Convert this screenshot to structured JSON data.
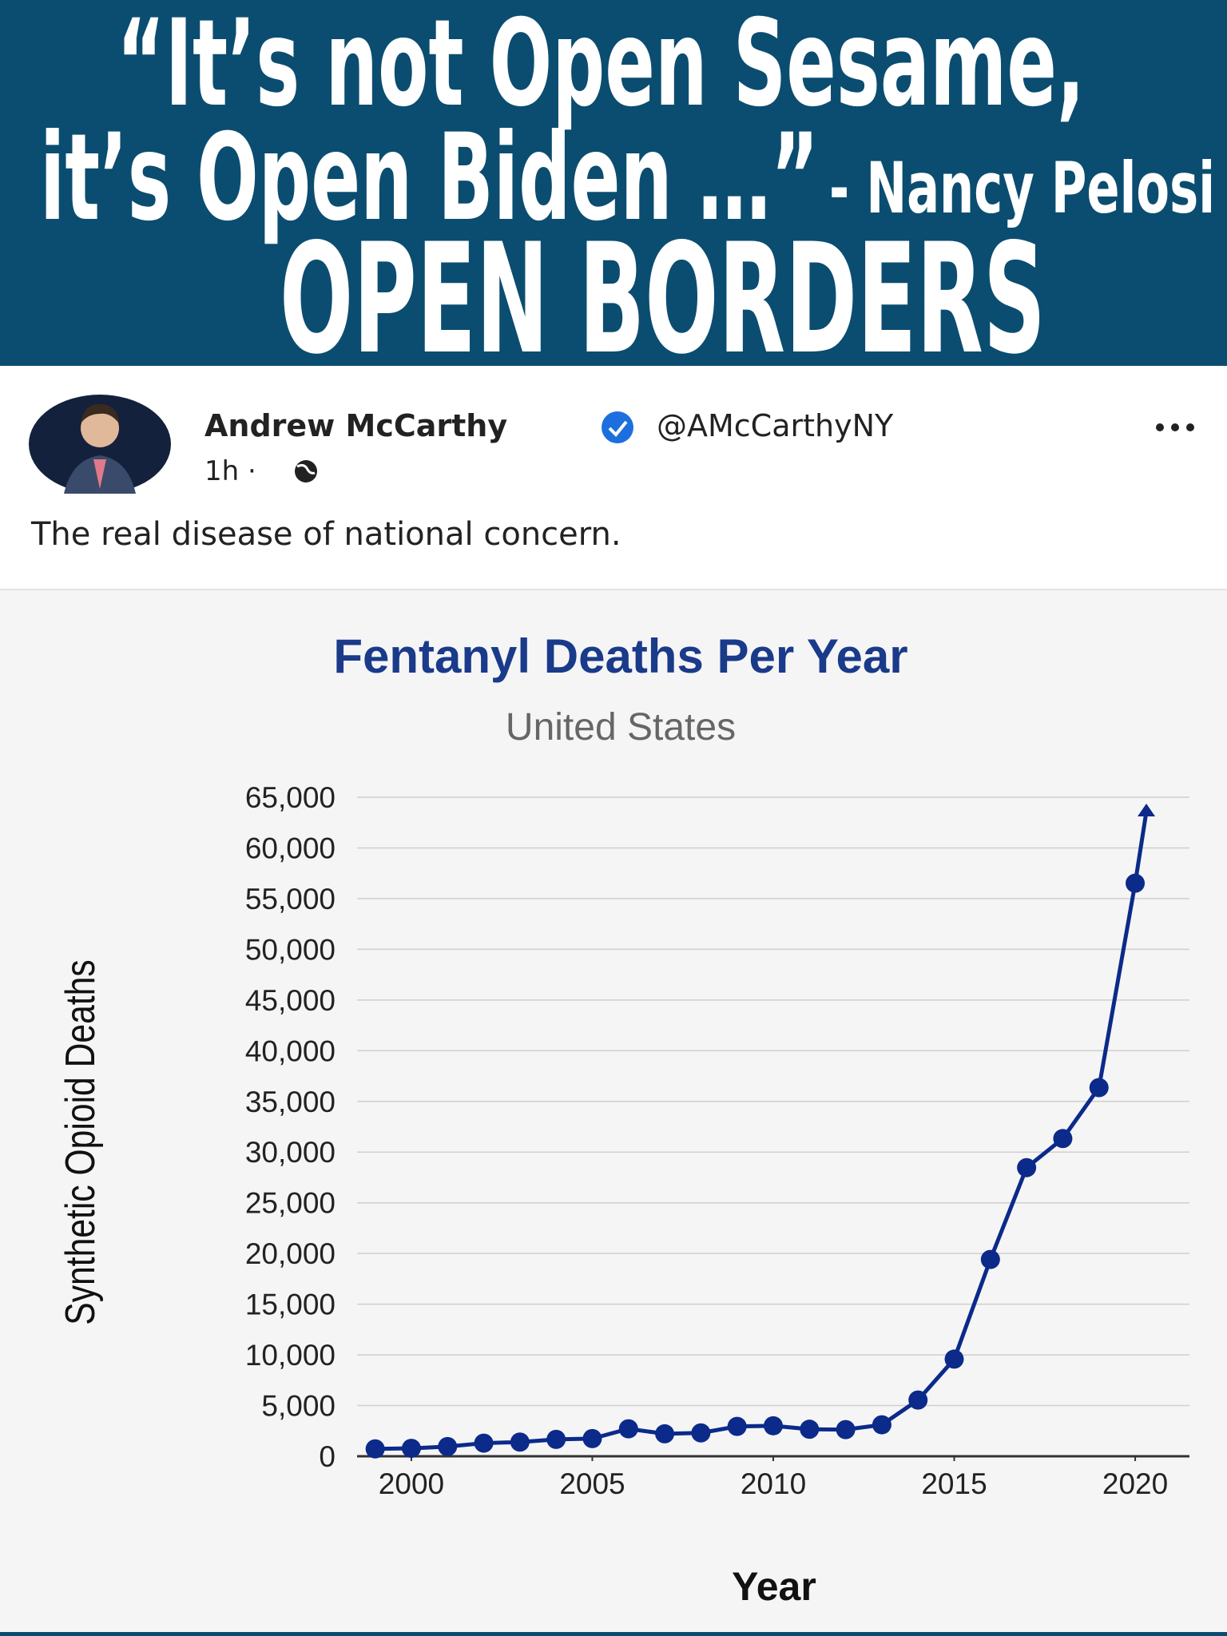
{
  "header": {
    "quote_line1": "“It’s not Open Sesame,",
    "quote_line2": "it’s Open Biden …”",
    "attribution": "- Nancy Pelosi",
    "headline": "OPEN BORDERS"
  },
  "tweet": {
    "name": "Andrew McCarthy",
    "handle": "@AMcCarthyNY",
    "time": "1h ·",
    "text": "The real disease of national concern."
  },
  "chart_data": {
    "type": "line",
    "title": "Fentanyl Deaths Per Year",
    "subtitle": "United States",
    "x_label": "Year",
    "y_label": "Synthetic Opioid Deaths",
    "x": [
      1999,
      2000,
      2001,
      2002,
      2003,
      2004,
      2005,
      2006,
      2007,
      2008,
      2009,
      2010,
      2011,
      2012,
      2013,
      2014,
      2015,
      2016,
      2017,
      2018,
      2019,
      2020
    ],
    "values": [
      730,
      782,
      957,
      1295,
      1400,
      1664,
      1742,
      2707,
      2213,
      2306,
      2946,
      3007,
      2666,
      2628,
      3105,
      5544,
      9580,
      19413,
      28466,
      31335,
      36359,
      56516
    ],
    "color": "#0b2a8a",
    "xlim": [
      1998.5,
      2021.5
    ],
    "xticks": [
      2000,
      2005,
      2010,
      2015,
      2020
    ],
    "ylim": [
      0,
      65000
    ],
    "yticks": [
      0,
      {
        "value": 5000,
        "label": "5,000"
      },
      {
        "value": 10000,
        "label": "10,000"
      },
      {
        "value": 15000,
        "label": "15,000"
      },
      {
        "value": 20000,
        "label": "20,000"
      },
      {
        "value": 25000,
        "label": "25,000"
      },
      {
        "value": 30000,
        "label": "30,000"
      },
      {
        "value": 35000,
        "label": "35,000"
      },
      {
        "value": 40000,
        "label": "40,000"
      },
      {
        "value": 45000,
        "label": "45,000"
      },
      {
        "value": 50000,
        "label": "50,000"
      },
      {
        "value": 55000,
        "label": "55,000"
      },
      {
        "value": 60000,
        "label": "60,000"
      },
      {
        "value": 65000,
        "label": "65,000"
      }
    ],
    "grid": true
  }
}
